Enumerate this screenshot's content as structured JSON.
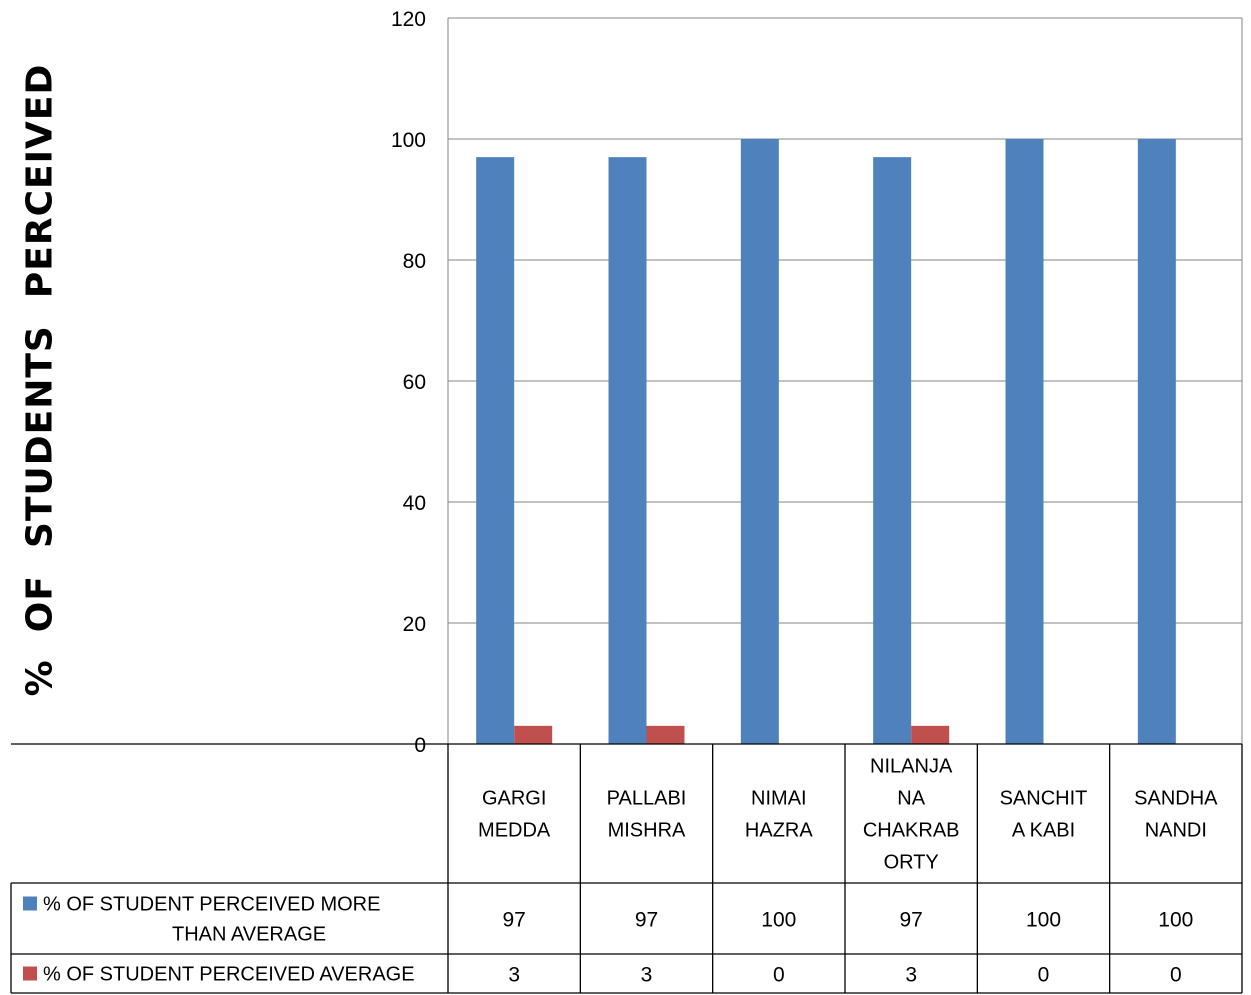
{
  "chart_data": {
    "type": "bar",
    "title": "",
    "ylabel": "%  OF  STUDENTS  PERCEIVED",
    "xlabel": "",
    "ylim": [
      0,
      120
    ],
    "yticks": [
      0,
      20,
      40,
      60,
      80,
      100,
      120
    ],
    "grid": true,
    "legend": "data-table",
    "categories": [
      [
        "GARGI",
        "MEDDA"
      ],
      [
        "PALLABI",
        "MISHRA"
      ],
      [
        "NIMAI",
        "HAZRA"
      ],
      [
        "NILANJA",
        "NA",
        "CHAKRAB",
        "ORTY"
      ],
      [
        "SANCHIT",
        "A KABI"
      ],
      [
        "SANDHA",
        "NANDI"
      ]
    ],
    "series": [
      {
        "name": [
          "% OF STUDENT PERCEIVED MORE",
          "THAN AVERAGE"
        ],
        "color": "#4F81BD",
        "values": [
          97,
          97,
          100,
          97,
          100,
          100
        ]
      },
      {
        "name": [
          "% OF STUDENT PERCEIVED AVERAGE"
        ],
        "color": "#C0504D",
        "values": [
          3,
          3,
          0,
          3,
          0,
          0
        ]
      }
    ]
  }
}
